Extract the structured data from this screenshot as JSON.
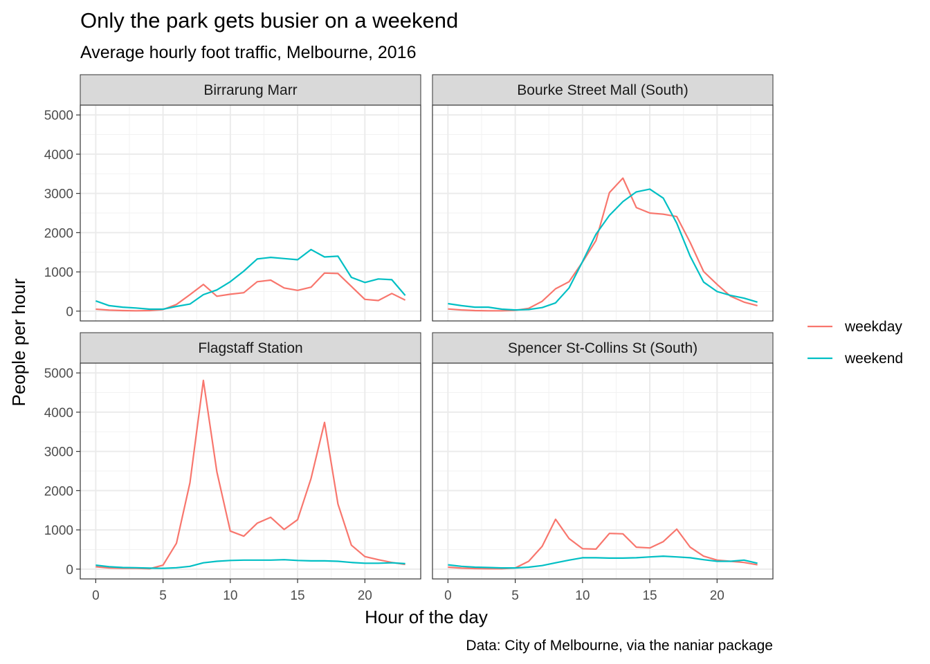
{
  "chart_data": {
    "type": "line",
    "title": "Only the park gets busier on a weekend",
    "subtitle": "Average hourly foot traffic, Melbourne, 2016",
    "xlabel": "Hour of the day",
    "ylabel": "People per hour",
    "caption": "Data: City of Melbourne, via the naniar package",
    "xlim": [
      -1.15,
      24.15
    ],
    "ylim": [
      -250,
      5250
    ],
    "x_ticks": [
      0,
      5,
      10,
      15,
      20
    ],
    "y_ticks": [
      0,
      1000,
      2000,
      3000,
      4000,
      5000
    ],
    "grid": true,
    "legend": {
      "position": "right",
      "entries": [
        {
          "label": "weekday",
          "color": "#F8766D"
        },
        {
          "label": "weekend",
          "color": "#00BFC4"
        }
      ]
    },
    "x": [
      0,
      1,
      2,
      3,
      4,
      5,
      6,
      7,
      8,
      9,
      10,
      11,
      12,
      13,
      14,
      15,
      16,
      17,
      18,
      19,
      20,
      21,
      22,
      23
    ],
    "facets": [
      {
        "name": "Birrarung Marr",
        "series": [
          {
            "name": "weekday",
            "values": [
              50,
              25,
              15,
              10,
              15,
              40,
              170,
              420,
              680,
              380,
              430,
              470,
              750,
              790,
              590,
              530,
              610,
              970,
              960,
              630,
              300,
              270,
              450,
              280
            ]
          },
          {
            "name": "weekend",
            "values": [
              260,
              140,
              100,
              80,
              50,
              50,
              120,
              180,
              420,
              540,
              750,
              1020,
              1330,
              1370,
              1340,
              1310,
              1570,
              1380,
              1400,
              860,
              730,
              820,
              800,
              400
            ]
          }
        ]
      },
      {
        "name": "Bourke Street Mall (South)",
        "series": [
          {
            "name": "weekday",
            "values": [
              55,
              30,
              15,
              10,
              10,
              20,
              70,
              250,
              570,
              750,
              1250,
              1800,
              3020,
              3390,
              2640,
              2500,
              2470,
              2410,
              1750,
              1010,
              680,
              380,
              230,
              140
            ]
          },
          {
            "name": "weekend",
            "values": [
              190,
              140,
              100,
              100,
              50,
              30,
              40,
              90,
              210,
              590,
              1260,
              1960,
              2440,
              2790,
              3040,
              3110,
              2880,
              2240,
              1400,
              740,
              500,
              400,
              330,
              230
            ]
          }
        ]
      },
      {
        "name": "Flagstaff Station",
        "series": [
          {
            "name": "weekday",
            "values": [
              60,
              30,
              20,
              20,
              10,
              100,
              660,
              2200,
              4810,
              2480,
              970,
              840,
              1170,
              1320,
              1010,
              1260,
              2310,
              3740,
              1660,
              610,
              320,
              240,
              170,
              120
            ]
          },
          {
            "name": "weekend",
            "values": [
              100,
              60,
              40,
              35,
              25,
              20,
              35,
              70,
              160,
              200,
              220,
              230,
              230,
              230,
              240,
              220,
              210,
              210,
              200,
              170,
              150,
              150,
              160,
              140
            ]
          }
        ]
      },
      {
        "name": "Spencer St-Collins St (South)",
        "series": [
          {
            "name": "weekday",
            "values": [
              50,
              25,
              15,
              10,
              10,
              30,
              200,
              580,
              1270,
              780,
              520,
              510,
              910,
              900,
              560,
              540,
              700,
              1020,
              560,
              330,
              230,
              200,
              170,
              110
            ]
          },
          {
            "name": "weekend",
            "values": [
              110,
              70,
              50,
              40,
              30,
              30,
              50,
              90,
              160,
              230,
              290,
              290,
              280,
              280,
              290,
              310,
              330,
              310,
              290,
              240,
              200,
              200,
              230,
              150
            ]
          }
        ]
      }
    ]
  }
}
